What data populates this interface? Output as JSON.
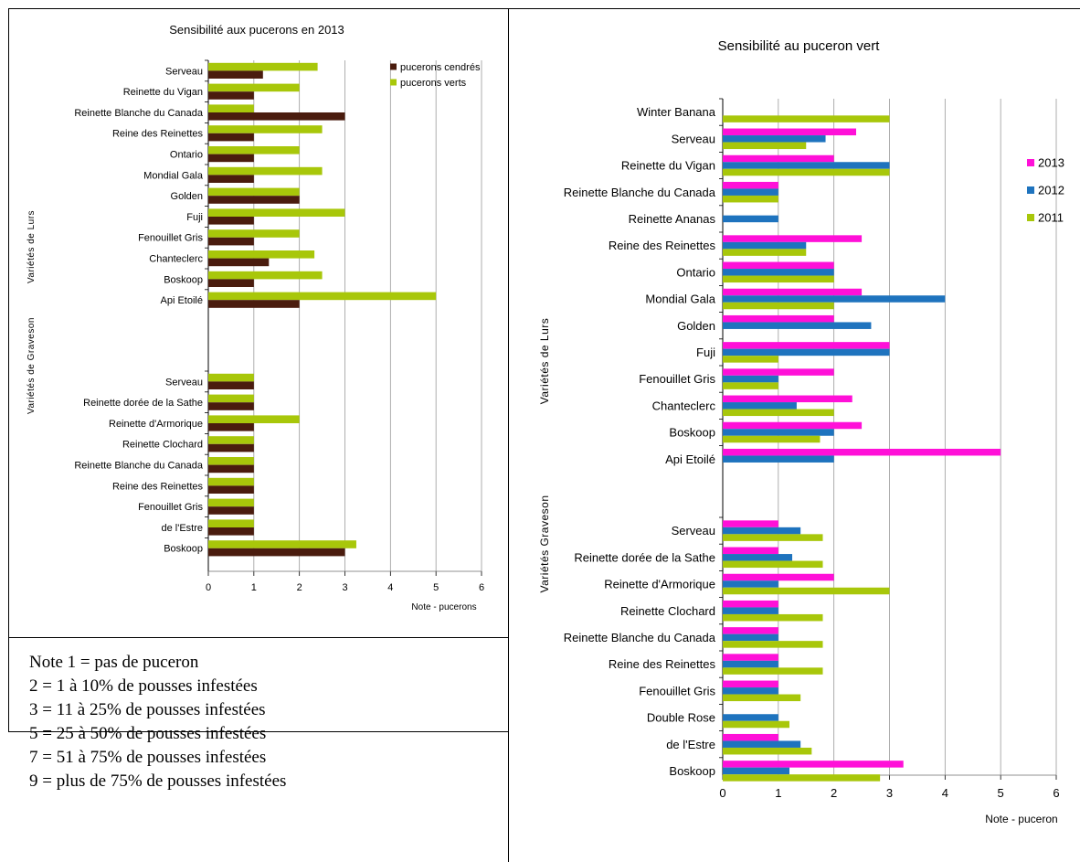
{
  "chart_data": [
    {
      "type": "bar",
      "orientation": "horizontal",
      "title": "Sensibilité aux pucerons en 2013",
      "xlabel": "Note - pucerons",
      "xlim": [
        0,
        6
      ],
      "x_ticks": [
        "0",
        "1",
        "2",
        "3",
        "4",
        "5",
        "6"
      ],
      "grid": true,
      "legend_position": "top-right",
      "groups": [
        {
          "label": "Variétés de Lurs",
          "categories": [
            "Serveau",
            "Reinette du Vigan",
            "Reinette Blanche du Canada",
            "Reine des Reinettes",
            "Ontario",
            "Mondial Gala",
            "Golden",
            "Fuji",
            "Fenouillet Gris",
            "Chanteclerc",
            "Boskoop",
            "Api Etoilé"
          ],
          "series": [
            {
              "name": "pucerons cendrés",
              "values": [
                1.2,
                1,
                3,
                1,
                1,
                1,
                2,
                1,
                1,
                1.33,
                1,
                2
              ]
            },
            {
              "name": "pucerons verts",
              "values": [
                2.4,
                2,
                1,
                2.5,
                2,
                2.5,
                2,
                3,
                2,
                2.33,
                2.5,
                5
              ]
            }
          ]
        },
        {
          "label": "Variétés de Graveson",
          "categories": [
            "Serveau",
            "Reinette dorée de la Sathe",
            "Reinette d'Armorique",
            "Reinette Clochard",
            "Reinette Blanche du Canada",
            "Reine des Reinettes",
            "Fenouillet Gris",
            "de l'Estre",
            "Boskoop"
          ],
          "series": [
            {
              "name": "pucerons cendrés",
              "values": [
                1,
                1,
                1,
                1,
                1,
                1,
                1,
                1,
                3
              ]
            },
            {
              "name": "pucerons verts",
              "values": [
                1,
                1,
                2,
                1,
                1,
                1,
                1,
                1,
                3.25
              ]
            }
          ]
        }
      ],
      "colors": {
        "pucerons cendrés": "#4a1c0e",
        "pucerons verts": "#a8c70a"
      }
    },
    {
      "type": "bar",
      "orientation": "horizontal",
      "title": "Sensibilité au puceron vert",
      "xlabel": "Note - puceron",
      "xlim": [
        0,
        6
      ],
      "x_ticks": [
        "0",
        "1",
        "2",
        "3",
        "4",
        "5",
        "6"
      ],
      "grid": true,
      "legend_position": "right",
      "groups": [
        {
          "label": "Variétés de Lurs",
          "categories": [
            "Winter Banana",
            "Serveau",
            "Reinette du Vigan",
            "Reinette Blanche du Canada",
            "Reinette Ananas",
            "Reine des Reinettes",
            "Ontario",
            "Mondial Gala",
            "Golden",
            "Fuji",
            "Fenouillet Gris",
            "Chanteclerc",
            "Boskoop",
            "Api Etoilé"
          ],
          "series": [
            {
              "name": "2011",
              "values": [
                3,
                1.5,
                3,
                1,
                null,
                1.5,
                2,
                2,
                null,
                1,
                1,
                2,
                1.75,
                null
              ]
            },
            {
              "name": "2012",
              "values": [
                null,
                1.85,
                3,
                1,
                1,
                1.5,
                2,
                4,
                2.67,
                3,
                1,
                1.33,
                2,
                2
              ]
            },
            {
              "name": "2013",
              "values": [
                null,
                2.4,
                2,
                1,
                null,
                2.5,
                2,
                2.5,
                2,
                3,
                2,
                2.33,
                2.5,
                5
              ]
            }
          ]
        },
        {
          "label": "Variétés Graveson",
          "categories": [
            "Serveau",
            "Reinette dorée de la Sathe",
            "Reinette d'Armorique",
            "Reinette Clochard",
            "Reinette Blanche du Canada",
            "Reine des Reinettes",
            "Fenouillet Gris",
            "Double Rose",
            "de l'Estre",
            "Boskoop"
          ],
          "series": [
            {
              "name": "2011",
              "values": [
                1.8,
                1.8,
                3,
                1.8,
                1.8,
                1.8,
                1.4,
                1.2,
                1.6,
                2.83
              ]
            },
            {
              "name": "2012",
              "values": [
                1.4,
                1.25,
                1,
                1,
                1,
                1,
                1,
                1,
                1.4,
                1.2
              ]
            },
            {
              "name": "2013",
              "values": [
                1,
                1,
                2,
                1,
                1,
                1,
                1,
                null,
                1,
                3.25
              ]
            }
          ]
        }
      ],
      "colors": {
        "2013": "#ff10d8",
        "2012": "#1e73be",
        "2011": "#a8c70a"
      }
    }
  ],
  "notes": {
    "lines": [
      "Note 1 = pas de puceron",
      "2 = 1 à 10% de pousses infestées",
      "3 = 11 à 25% de pousses infestées",
      "5 = 25 à 50% de pousses infestées",
      "7 = 51 à 75% de pousses infestées",
      "9 = plus de 75% de pousses infestées"
    ]
  }
}
